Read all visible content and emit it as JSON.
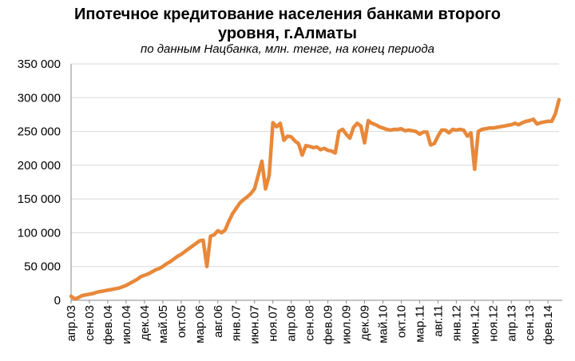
{
  "chart_data": {
    "type": "line",
    "title_line1": "Ипотечное кредитование населения банками второго",
    "title_line2": "уровня, г.Алматы",
    "subtitle": "по данным Нацбанка, млн. тенге, на конец периода",
    "xlabel": "",
    "ylabel": "",
    "ylim": [
      0,
      350000
    ],
    "yticks": [
      "0",
      "50 000",
      "100 000",
      "150 000",
      "200 000",
      "250 000",
      "300 000",
      "350 000"
    ],
    "xtick_labels": [
      "апр.03",
      "сен.03",
      "фев.04",
      "июл.04",
      "дек.04",
      "май.05",
      "окт.05",
      "мар.06",
      "авг.06",
      "янв.07",
      "июн.07",
      "ноя.07",
      "апр.08",
      "сен.08",
      "фев.09",
      "июл.09",
      "дек.09",
      "май.10",
      "окт.10",
      "мар.11",
      "авг.11",
      "янв.12",
      "июн.12",
      "ноя.12",
      "апр.13",
      "сен.13",
      "фев.14"
    ],
    "grid": true,
    "legend": "none",
    "series_color": "#E8883A",
    "series": [
      {
        "x_start": "апр.03",
        "x_end": "фев.14",
        "values": [
          6000,
          2000,
          4000,
          7000,
          8000,
          9000,
          10000,
          12000,
          13000,
          14000,
          15000,
          16000,
          17000,
          18000,
          20000,
          22000,
          25000,
          28000,
          31000,
          35000,
          37000,
          39000,
          42000,
          45000,
          47000,
          50000,
          54000,
          57000,
          61000,
          65000,
          68000,
          72000,
          76000,
          80000,
          84000,
          88000,
          89000,
          50000,
          95000,
          97000,
          103000,
          100000,
          104000,
          117000,
          128000,
          136000,
          144000,
          149000,
          153000,
          158000,
          165000,
          185000,
          206000,
          165000,
          185000,
          263000,
          257000,
          262000,
          237000,
          243000,
          242000,
          236000,
          232000,
          215000,
          229000,
          228000,
          226000,
          227000,
          223000,
          225000,
          222000,
          221000,
          218000,
          250000,
          253000,
          246000,
          240000,
          256000,
          262000,
          258000,
          233000,
          266000,
          262000,
          260000,
          257000,
          255000,
          253000,
          252000,
          253000,
          253000,
          254000,
          251000,
          252000,
          251000,
          250000,
          246000,
          249000,
          249000,
          230000,
          232000,
          243000,
          252000,
          252000,
          248000,
          253000,
          252000,
          253000,
          252000,
          243000,
          248000,
          194000,
          250000,
          253000,
          254000,
          255000,
          255000,
          256000,
          257000,
          258000,
          259000,
          260000,
          262000,
          260000,
          263000,
          265000,
          266000,
          268000,
          261000,
          263000,
          264000,
          265000,
          265000,
          276000,
          297000
        ]
      }
    ]
  }
}
